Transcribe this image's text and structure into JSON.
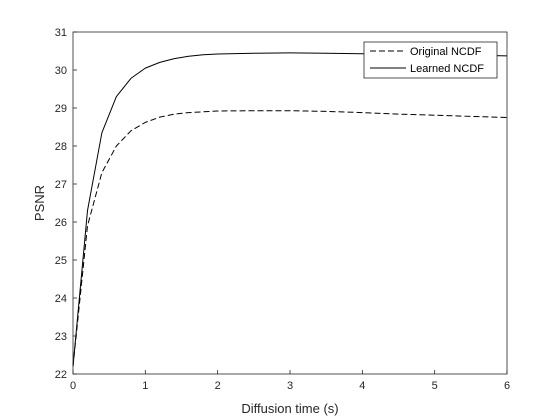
{
  "chart_data": {
    "type": "line",
    "title": "",
    "xlabel": "Diffusion time (s)",
    "ylabel": "PSNR",
    "xlim": [
      0,
      6
    ],
    "ylim": [
      22,
      31
    ],
    "xticks": [
      0,
      1,
      2,
      3,
      4,
      5,
      6
    ],
    "yticks": [
      22,
      23,
      24,
      25,
      26,
      27,
      28,
      29,
      30,
      31
    ],
    "grid": false,
    "legend": "top-right",
    "series": [
      {
        "name": "Original NCDF",
        "style": "dashed",
        "color": "#000000",
        "x": [
          0,
          0.2,
          0.4,
          0.6,
          0.8,
          1.0,
          1.2,
          1.4,
          1.6,
          1.8,
          2.0,
          2.5,
          3.0,
          3.5,
          4.0,
          4.5,
          5.0,
          5.5,
          6.0
        ],
        "y": [
          22.2,
          25.9,
          27.3,
          28.0,
          28.4,
          28.62,
          28.76,
          28.84,
          28.88,
          28.9,
          28.92,
          28.93,
          28.93,
          28.91,
          28.88,
          28.84,
          28.81,
          28.78,
          28.75
        ]
      },
      {
        "name": "Learned NCDF",
        "style": "solid",
        "color": "#000000",
        "x": [
          0,
          0.2,
          0.4,
          0.6,
          0.8,
          1.0,
          1.2,
          1.4,
          1.6,
          1.8,
          2.0,
          2.5,
          3.0,
          3.5,
          4.0,
          4.5,
          5.0,
          5.5,
          6.0
        ],
        "y": [
          22.2,
          26.3,
          28.35,
          29.3,
          29.78,
          30.05,
          30.2,
          30.3,
          30.36,
          30.4,
          30.42,
          30.44,
          30.45,
          30.44,
          30.43,
          30.42,
          30.41,
          30.39,
          30.37
        ]
      }
    ]
  }
}
